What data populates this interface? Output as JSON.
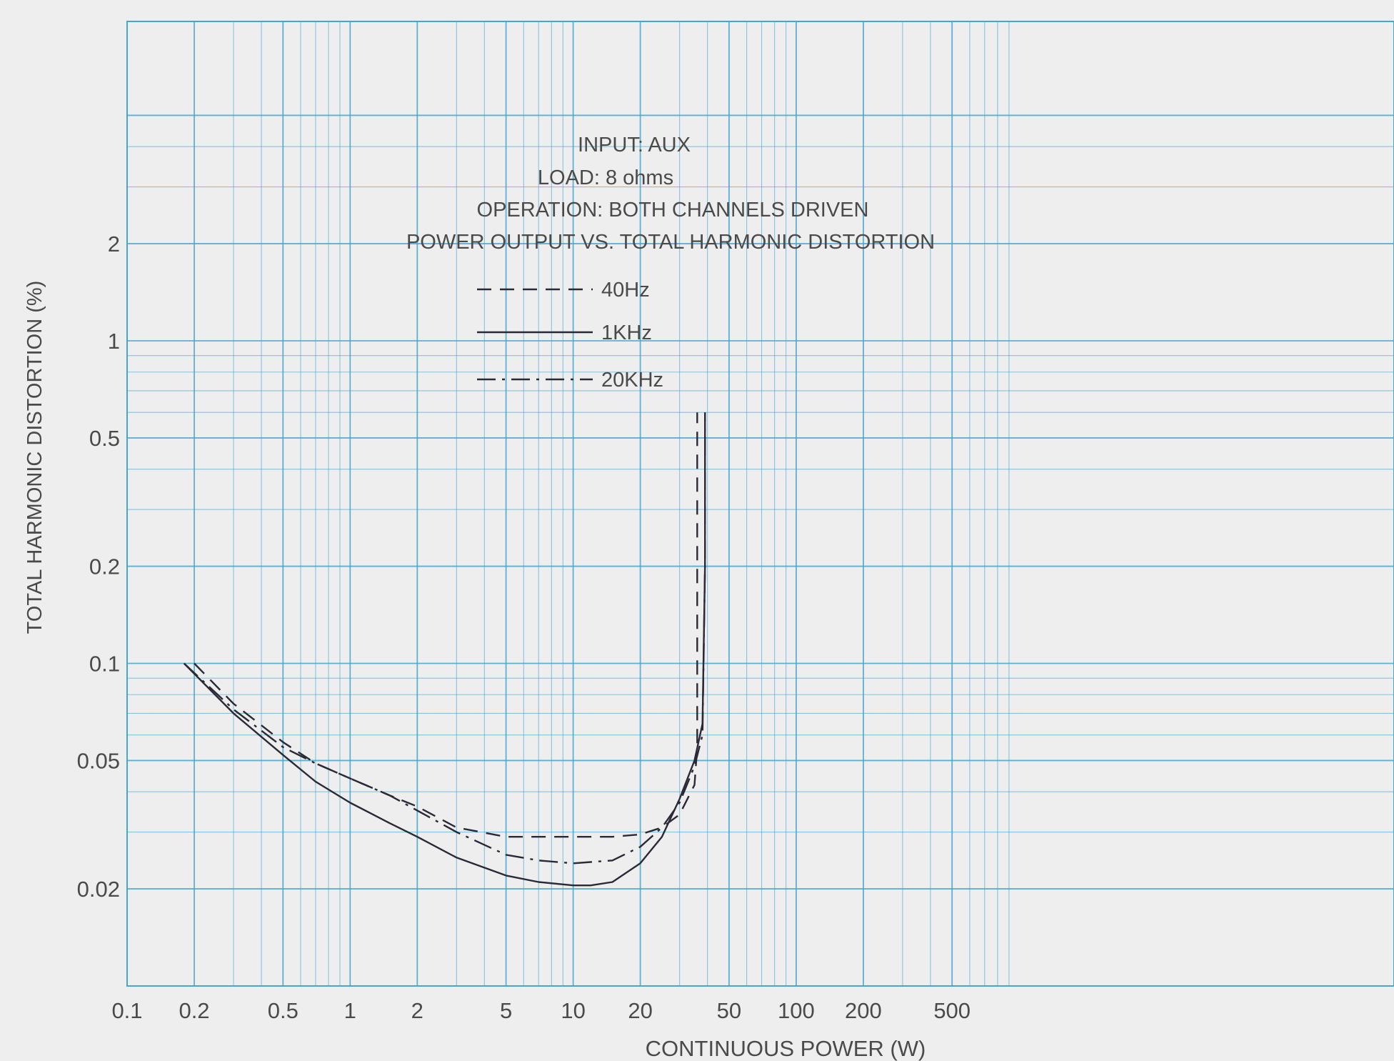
{
  "chart_data": {
    "type": "line",
    "title_lines": [
      "INPUT: AUX",
      "LOAD: 8 ohms",
      "OPERATION: BOTH CHANNELS DRIVEN",
      "POWER OUTPUT VS. TOTAL HARMONIC DISTORTION"
    ],
    "xlabel": "CONTINUOUS POWER (W)",
    "ylabel": "TOTAL HARMONIC DISTORTION (%)",
    "x_scale": "log",
    "y_scale": "log",
    "xlim": [
      0.1,
      1000
    ],
    "ylim": [
      0.01,
      5
    ],
    "x_ticks": [
      0.1,
      0.2,
      0.5,
      1,
      2,
      5,
      10,
      20,
      50,
      100,
      200,
      500
    ],
    "x_tick_labels": [
      "0.1",
      "0.2",
      "0.5",
      "1",
      "2",
      "5",
      "10",
      "20",
      "50",
      "100",
      "200",
      "500"
    ],
    "y_ticks": [
      0.02,
      0.05,
      0.1,
      0.2,
      0.5,
      1,
      2
    ],
    "y_tick_labels": [
      "0.02",
      "0.05",
      "0.1",
      "0.2",
      "0.5",
      "1",
      "2"
    ],
    "grid": true,
    "grid_color": "#45a6cf",
    "line_color": "#2a2a36",
    "background": "#eeeeee",
    "legend_placement": "top-left",
    "series": [
      {
        "name": "40Hz",
        "style": "dashed",
        "x": [
          0.2,
          0.3,
          0.5,
          0.7,
          1,
          1.5,
          2,
          3,
          5,
          7,
          10,
          15,
          20,
          25,
          30,
          35,
          36,
          36,
          36
        ],
        "y": [
          0.1,
          0.075,
          0.057,
          0.049,
          0.044,
          0.039,
          0.036,
          0.031,
          0.029,
          0.029,
          0.029,
          0.029,
          0.0295,
          0.031,
          0.034,
          0.042,
          0.055,
          0.2,
          0.6
        ]
      },
      {
        "name": "1KHz",
        "style": "solid",
        "x": [
          0.18,
          0.3,
          0.5,
          0.7,
          1,
          1.5,
          2,
          3,
          5,
          7,
          10,
          12,
          15,
          20,
          25,
          30,
          35,
          38,
          39,
          39
        ],
        "y": [
          0.1,
          0.07,
          0.052,
          0.043,
          0.037,
          0.032,
          0.029,
          0.025,
          0.022,
          0.021,
          0.0205,
          0.0205,
          0.021,
          0.024,
          0.029,
          0.038,
          0.05,
          0.065,
          0.2,
          0.6
        ]
      },
      {
        "name": "20KHz",
        "style": "dash-dot",
        "x": [
          0.18,
          0.3,
          0.5,
          0.7,
          1,
          1.5,
          2,
          3,
          5,
          7,
          10,
          15,
          20,
          25,
          30,
          35,
          38,
          39,
          39
        ],
        "y": [
          0.1,
          0.072,
          0.055,
          0.049,
          0.044,
          0.039,
          0.035,
          0.03,
          0.0255,
          0.0245,
          0.024,
          0.0245,
          0.027,
          0.031,
          0.037,
          0.048,
          0.06,
          0.2,
          0.6
        ]
      }
    ]
  }
}
